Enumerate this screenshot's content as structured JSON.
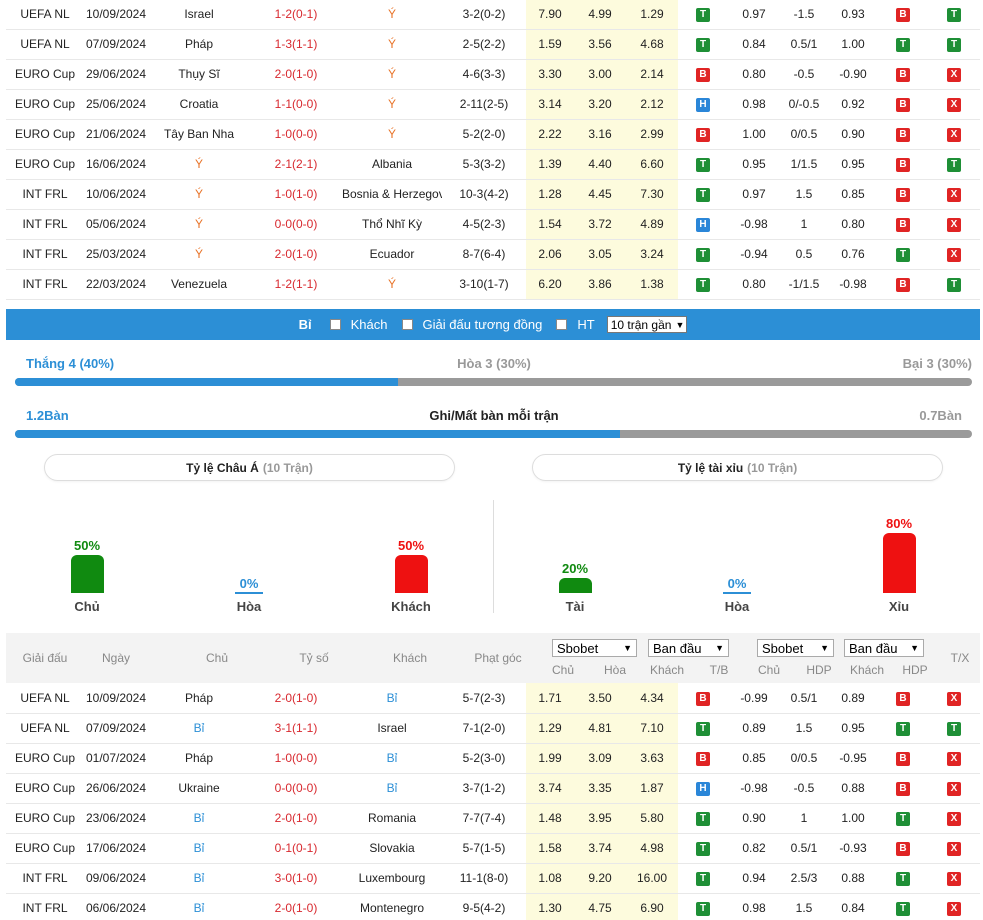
{
  "top_table": {
    "rows": [
      {
        "league": "UEFA NL",
        "date": "10/09/2024",
        "home": "Israel",
        "home_c": "",
        "score": "1-2(0-1)",
        "away": "Ý",
        "away_c": "orange",
        "corners": "3-2(0-2)",
        "o1": "7.90",
        "o2": "4.99",
        "o3": "1.29",
        "r1": "T",
        "h1": "0.97",
        "h2": "-1.5",
        "h3": "0.93",
        "r2": "B",
        "r3": "T"
      },
      {
        "league": "UEFA NL",
        "date": "07/09/2024",
        "home": "Pháp",
        "home_c": "",
        "score": "1-3(1-1)",
        "away": "Ý",
        "away_c": "orange",
        "corners": "2-5(2-2)",
        "o1": "1.59",
        "o2": "3.56",
        "o3": "4.68",
        "r1": "T",
        "h1": "0.84",
        "h2": "0.5/1",
        "h3": "1.00",
        "r2": "T",
        "r3": "T"
      },
      {
        "league": "EURO Cup",
        "date": "29/06/2024",
        "home": "Thụy Sĩ",
        "home_c": "",
        "score": "2-0(1-0)",
        "away": "Ý",
        "away_c": "orange",
        "corners": "4-6(3-3)",
        "o1": "3.30",
        "o2": "3.00",
        "o3": "2.14",
        "r1": "B",
        "h1": "0.80",
        "h2": "-0.5",
        "h3": "-0.90",
        "r2": "B",
        "r3": "X"
      },
      {
        "league": "EURO Cup",
        "date": "25/06/2024",
        "home": "Croatia",
        "home_c": "",
        "score": "1-1(0-0)",
        "away": "Ý",
        "away_c": "orange",
        "corners": "2-11(2-5)",
        "o1": "3.14",
        "o2": "3.20",
        "o3": "2.12",
        "r1": "H",
        "h1": "0.98",
        "h2": "0/-0.5",
        "h3": "0.92",
        "r2": "B",
        "r3": "X"
      },
      {
        "league": "EURO Cup",
        "date": "21/06/2024",
        "home": "Tây Ban Nha",
        "home_c": "",
        "score": "1-0(0-0)",
        "away": "Ý",
        "away_c": "orange",
        "corners": "5-2(2-0)",
        "o1": "2.22",
        "o2": "3.16",
        "o3": "2.99",
        "r1": "B",
        "h1": "1.00",
        "h2": "0/0.5",
        "h3": "0.90",
        "r2": "B",
        "r3": "X"
      },
      {
        "league": "EURO Cup",
        "date": "16/06/2024",
        "home": "Ý",
        "home_c": "orange",
        "score": "2-1(2-1)",
        "away": "Albania",
        "away_c": "",
        "corners": "5-3(3-2)",
        "o1": "1.39",
        "o2": "4.40",
        "o3": "6.60",
        "r1": "T",
        "h1": "0.95",
        "h2": "1/1.5",
        "h3": "0.95",
        "r2": "B",
        "r3": "T"
      },
      {
        "league": "INT FRL",
        "date": "10/06/2024",
        "home": "Ý",
        "home_c": "orange",
        "score": "1-0(1-0)",
        "away": "Bosnia & Herzegovina",
        "away_c": "",
        "corners": "10-3(4-2)",
        "o1": "1.28",
        "o2": "4.45",
        "o3": "7.30",
        "r1": "T",
        "h1": "0.97",
        "h2": "1.5",
        "h3": "0.85",
        "r2": "B",
        "r3": "X"
      },
      {
        "league": "INT FRL",
        "date": "05/06/2024",
        "home": "Ý",
        "home_c": "orange",
        "score": "0-0(0-0)",
        "away": "Thổ Nhĩ Kỳ",
        "away_c": "",
        "corners": "4-5(2-3)",
        "o1": "1.54",
        "o2": "3.72",
        "o3": "4.89",
        "r1": "H",
        "h1": "-0.98",
        "h2": "1",
        "h3": "0.80",
        "r2": "B",
        "r3": "X"
      },
      {
        "league": "INT FRL",
        "date": "25/03/2024",
        "home": "Ý",
        "home_c": "orange",
        "score": "2-0(1-0)",
        "away": "Ecuador",
        "away_c": "",
        "corners": "8-7(6-4)",
        "o1": "2.06",
        "o2": "3.05",
        "o3": "3.24",
        "r1": "T",
        "h1": "-0.94",
        "h2": "0.5",
        "h3": "0.76",
        "r2": "T",
        "r3": "X"
      },
      {
        "league": "INT FRL",
        "date": "22/03/2024",
        "home": "Venezuela",
        "home_c": "",
        "score": "1-2(1-1)",
        "away": "Ý",
        "away_c": "orange",
        "corners": "3-10(1-7)",
        "o1": "6.20",
        "o2": "3.86",
        "o3": "1.38",
        "r1": "T",
        "h1": "0.80",
        "h2": "-1/1.5",
        "h3": "-0.98",
        "r2": "B",
        "r3": "T"
      }
    ]
  },
  "filter": {
    "team": "Bỉ",
    "opt_away": "Khách",
    "opt_same_league": "Giải đấu tương đồng",
    "opt_ht": "HT",
    "select_value": "10 trận gần"
  },
  "summary": {
    "win": "Thắng 4 (40%)",
    "draw": "Hòa 3 (30%)",
    "loss": "Bại 3 (30%)",
    "win_fraction": 0.4,
    "goals_for": "1.2Bàn",
    "goals_label": "Ghi/Mất bàn mỗi trận",
    "goals_against": "0.7Bàn",
    "goals_fraction": 0.632
  },
  "pills": {
    "asia_title": "Tỷ lệ Châu Á",
    "asia_sub": "(10 Trận)",
    "ou_title": "Tỷ lệ tài xỉu",
    "ou_sub": "(10 Trận)"
  },
  "bars": {
    "asia": [
      {
        "pct": "50%",
        "value": 50,
        "label": "Chủ",
        "color": "#108a10"
      },
      {
        "pct": "0%",
        "value": 0,
        "label": "Hòa",
        "color": "#2c8fd6"
      },
      {
        "pct": "50%",
        "value": 50,
        "label": "Khách",
        "color": "#ee1111"
      }
    ],
    "ou": [
      {
        "pct": "20%",
        "value": 20,
        "label": "Tài",
        "color": "#108a10"
      },
      {
        "pct": "0%",
        "value": 0,
        "label": "Hòa",
        "color": "#2c8fd6"
      },
      {
        "pct": "80%",
        "value": 80,
        "label": "Xỉu",
        "color": "#ee1111"
      }
    ]
  },
  "second_header": {
    "league": "Giải đấu",
    "date": "Ngày",
    "home": "Chủ",
    "score": "Tỷ số",
    "away": "Khách",
    "corners": "Phạt góc",
    "sel1": "Sbobet",
    "sel2": "Ban đầu",
    "sel3": "Sbobet",
    "sel4": "Ban đầu",
    "c_home": "Chủ",
    "c_draw": "Hòa",
    "c_away": "Khách",
    "c_tb": "T/B",
    "c_home2": "Chủ",
    "c_hdp": "HDP",
    "c_away2": "Khách",
    "c_hdp2": "HDP",
    "c_tx": "T/X"
  },
  "bottom_table": {
    "rows": [
      {
        "league": "UEFA NL",
        "date": "10/09/2024",
        "home": "Pháp",
        "home_c": "",
        "score": "2-0(1-0)",
        "away": "Bỉ",
        "away_c": "blue",
        "corners": "5-7(2-3)",
        "o1": "1.71",
        "o2": "3.50",
        "o3": "4.34",
        "r1": "B",
        "h1": "-0.99",
        "h2": "0.5/1",
        "h3": "0.89",
        "r2": "B",
        "r3": "X"
      },
      {
        "league": "UEFA NL",
        "date": "07/09/2024",
        "home": "Bỉ",
        "home_c": "blue",
        "score": "3-1(1-1)",
        "away": "Israel",
        "away_c": "",
        "corners": "7-1(2-0)",
        "o1": "1.29",
        "o2": "4.81",
        "o3": "7.10",
        "r1": "T",
        "h1": "0.89",
        "h2": "1.5",
        "h3": "0.95",
        "r2": "T",
        "r3": "T"
      },
      {
        "league": "EURO Cup",
        "date": "01/07/2024",
        "home": "Pháp",
        "home_c": "",
        "score": "1-0(0-0)",
        "away": "Bỉ",
        "away_c": "blue",
        "corners": "5-2(3-0)",
        "o1": "1.99",
        "o2": "3.09",
        "o3": "3.63",
        "r1": "B",
        "h1": "0.85",
        "h2": "0/0.5",
        "h3": "-0.95",
        "r2": "B",
        "r3": "X"
      },
      {
        "league": "EURO Cup",
        "date": "26/06/2024",
        "home": "Ukraine",
        "home_c": "",
        "score": "0-0(0-0)",
        "away": "Bỉ",
        "away_c": "blue",
        "corners": "3-7(1-2)",
        "o1": "3.74",
        "o2": "3.35",
        "o3": "1.87",
        "r1": "H",
        "h1": "-0.98",
        "h2": "-0.5",
        "h3": "0.88",
        "r2": "B",
        "r3": "X"
      },
      {
        "league": "EURO Cup",
        "date": "23/06/2024",
        "home": "Bỉ",
        "home_c": "blue",
        "score": "2-0(1-0)",
        "away": "Romania",
        "away_c": "",
        "corners": "7-7(7-4)",
        "o1": "1.48",
        "o2": "3.95",
        "o3": "5.80",
        "r1": "T",
        "h1": "0.90",
        "h2": "1",
        "h3": "1.00",
        "r2": "T",
        "r3": "X"
      },
      {
        "league": "EURO Cup",
        "date": "17/06/2024",
        "home": "Bỉ",
        "home_c": "blue",
        "score": "0-1(0-1)",
        "away": "Slovakia",
        "away_c": "",
        "corners": "5-7(1-5)",
        "o1": "1.58",
        "o2": "3.74",
        "o3": "4.98",
        "r1": "T",
        "h1": "0.82",
        "h2": "0.5/1",
        "h3": "-0.93",
        "r2": "B",
        "r3": "X"
      },
      {
        "league": "INT FRL",
        "date": "09/06/2024",
        "home": "Bỉ",
        "home_c": "blue",
        "score": "3-0(1-0)",
        "away": "Luxembourg",
        "away_c": "",
        "corners": "11-1(8-0)",
        "o1": "1.08",
        "o2": "9.20",
        "o3": "16.00",
        "r1": "T",
        "h1": "0.94",
        "h2": "2.5/3",
        "h3": "0.88",
        "r2": "T",
        "r3": "X"
      },
      {
        "league": "INT FRL",
        "date": "06/06/2024",
        "home": "Bỉ",
        "home_c": "blue",
        "score": "2-0(1-0)",
        "away": "Montenegro",
        "away_c": "",
        "corners": "9-5(4-2)",
        "o1": "1.30",
        "o2": "4.75",
        "o3": "6.90",
        "r1": "T",
        "h1": "0.98",
        "h2": "1.5",
        "h3": "0.84",
        "r2": "T",
        "r3": "X"
      }
    ]
  }
}
